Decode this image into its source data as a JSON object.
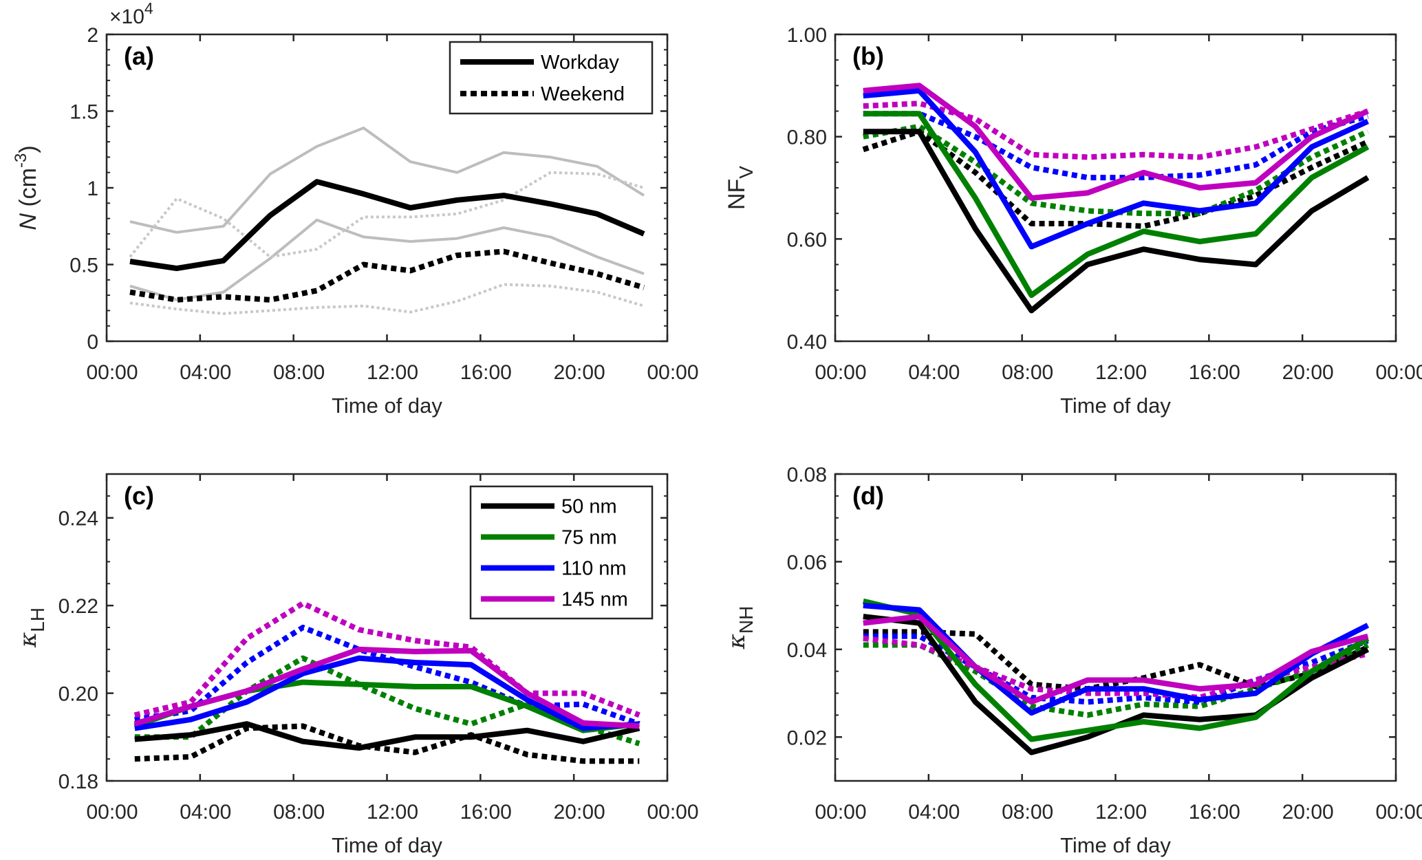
{
  "chart_data": [
    {
      "type": "line",
      "panel_label": "(a)",
      "ylabel": {
        "main": "N",
        "pre": " (cm",
        "sup": "-3",
        "post": ")"
      },
      "multiplier": {
        "base": "×10",
        "exp": "4"
      },
      "xlabel": "Time of day",
      "xlim": [
        0,
        24
      ],
      "xticks": [
        0,
        4,
        8,
        12,
        16,
        20,
        24
      ],
      "xtick_labels": [
        "00:00",
        "04:00",
        "08:00",
        "12:00",
        "16:00",
        "20:00",
        "00:00"
      ],
      "ylim": [
        0,
        20000
      ],
      "yticks": [
        0,
        5000,
        10000,
        15000,
        20000
      ],
      "ytick_labels": [
        "0",
        "0.5",
        "1",
        "1.5",
        "2"
      ],
      "minor_tick_step": 1000,
      "x": [
        1,
        3,
        5,
        7,
        9,
        11,
        13,
        15,
        17,
        19,
        21,
        23
      ],
      "legend": {
        "placement": "top-right",
        "entries": [
          {
            "label": "Workday",
            "color": "#000000",
            "style": "solid"
          },
          {
            "label": "Weekend",
            "color": "#000000",
            "style": "dotted"
          }
        ]
      },
      "series": [
        {
          "color": "#bdbdbd",
          "style": "solid",
          "role": "workday-upper",
          "values": [
            7800,
            7100,
            7500,
            10900,
            12700,
            13900,
            11700,
            11000,
            12300,
            12000,
            11400,
            9500
          ]
        },
        {
          "color": "#bdbdbd",
          "style": "solid",
          "role": "workday-lower",
          "values": [
            3600,
            2700,
            3200,
            5400,
            7900,
            6800,
            6500,
            6700,
            7400,
            6800,
            5500,
            4400
          ]
        },
        {
          "color": "#c8c8c8",
          "style": "dotted",
          "role": "weekend-upper",
          "values": [
            5500,
            9300,
            8000,
            5500,
            6000,
            8100,
            8100,
            8300,
            9200,
            11000,
            10900,
            10000
          ]
        },
        {
          "color": "#c8c8c8",
          "style": "dotted",
          "role": "weekend-lower",
          "values": [
            2500,
            2100,
            1800,
            2000,
            2200,
            2300,
            1900,
            2600,
            3700,
            3600,
            3200,
            2300
          ]
        },
        {
          "name": "Workday",
          "color": "#000000",
          "style": "solid",
          "values": [
            5200,
            4750,
            5250,
            8200,
            10400,
            9600,
            8700,
            9200,
            9500,
            8950,
            8300,
            7000
          ]
        },
        {
          "name": "Weekend",
          "color": "#000000",
          "style": "dotted",
          "values": [
            3200,
            2700,
            2900,
            2700,
            3300,
            5000,
            4600,
            5600,
            5850,
            5100,
            4400,
            3500
          ]
        }
      ]
    },
    {
      "type": "line",
      "panel_label": "(b)",
      "ylabel": {
        "main": "NF",
        "sub": "V"
      },
      "xlabel": "Time of day",
      "xlim": [
        0,
        24
      ],
      "xticks": [
        0,
        4,
        8,
        12,
        16,
        20,
        24
      ],
      "xtick_labels": [
        "00:00",
        "04:00",
        "08:00",
        "12:00",
        "16:00",
        "20:00",
        "00:00"
      ],
      "ylim": [
        0.4,
        1.0
      ],
      "yticks": [
        0.4,
        0.6,
        0.8,
        1.0
      ],
      "ytick_labels": [
        "0.40",
        "0.60",
        "0.80",
        "1.00"
      ],
      "minor_tick_step": 0.05,
      "x": [
        1.2,
        3.6,
        6.0,
        8.4,
        10.8,
        13.2,
        15.6,
        18.0,
        20.4,
        22.8
      ],
      "series": [
        {
          "name": "50 nm",
          "color": "#000000",
          "style": "dotted",
          "values": [
            0.775,
            0.81,
            0.73,
            0.63,
            0.63,
            0.625,
            0.65,
            0.685,
            0.74,
            0.79
          ]
        },
        {
          "name": "75 nm",
          "color": "#008000",
          "style": "dotted",
          "values": [
            0.8,
            0.82,
            0.75,
            0.67,
            0.655,
            0.65,
            0.65,
            0.695,
            0.76,
            0.81
          ]
        },
        {
          "name": "110 nm",
          "color": "#0000ff",
          "style": "dotted",
          "values": [
            0.845,
            0.845,
            0.8,
            0.74,
            0.72,
            0.72,
            0.725,
            0.745,
            0.81,
            0.84
          ]
        },
        {
          "name": "145 nm",
          "color": "#bf00bf",
          "style": "dotted",
          "values": [
            0.86,
            0.865,
            0.835,
            0.765,
            0.76,
            0.765,
            0.76,
            0.78,
            0.815,
            0.85
          ]
        },
        {
          "name": "50 nm",
          "color": "#000000",
          "style": "solid",
          "values": [
            0.81,
            0.81,
            0.62,
            0.46,
            0.55,
            0.58,
            0.56,
            0.55,
            0.655,
            0.72
          ]
        },
        {
          "name": "75 nm",
          "color": "#008000",
          "style": "solid",
          "values": [
            0.845,
            0.845,
            0.68,
            0.49,
            0.57,
            0.615,
            0.595,
            0.61,
            0.72,
            0.78
          ]
        },
        {
          "name": "110 nm",
          "color": "#0000ff",
          "style": "solid",
          "values": [
            0.88,
            0.89,
            0.77,
            0.585,
            0.63,
            0.67,
            0.655,
            0.67,
            0.78,
            0.83
          ]
        },
        {
          "name": "145 nm",
          "color": "#bf00bf",
          "style": "solid",
          "values": [
            0.89,
            0.9,
            0.82,
            0.68,
            0.69,
            0.73,
            0.7,
            0.71,
            0.8,
            0.85
          ]
        }
      ]
    },
    {
      "type": "line",
      "panel_label": "(c)",
      "ylabel": {
        "main": "κ",
        "sub": "LH"
      },
      "xlabel": "Time of day",
      "xlim": [
        0,
        24
      ],
      "xticks": [
        0,
        4,
        8,
        12,
        16,
        20,
        24
      ],
      "xtick_labels": [
        "00:00",
        "04:00",
        "08:00",
        "12:00",
        "16:00",
        "20:00",
        "00:00"
      ],
      "ylim": [
        0.18,
        0.25
      ],
      "yticks": [
        0.18,
        0.2,
        0.22,
        0.24
      ],
      "ytick_labels": [
        "0.18",
        "0.20",
        "0.22",
        "0.24"
      ],
      "minor_tick_step": 0.005,
      "x": [
        1.2,
        3.6,
        6.0,
        8.4,
        10.8,
        13.2,
        15.6,
        18.0,
        20.4,
        22.8
      ],
      "legend": {
        "placement": "top-right",
        "entries": [
          {
            "label": "50 nm",
            "color": "#000000",
            "style": "solid"
          },
          {
            "label": "75 nm",
            "color": "#008000",
            "style": "solid"
          },
          {
            "label": "110 nm",
            "color": "#0000ff",
            "style": "solid"
          },
          {
            "label": "145 nm",
            "color": "#bf00bf",
            "style": "solid"
          }
        ]
      },
      "series": [
        {
          "name": "50 nm",
          "color": "#000000",
          "style": "dotted",
          "values": [
            0.185,
            0.1855,
            0.192,
            0.1925,
            0.188,
            0.1865,
            0.1905,
            0.186,
            0.1845,
            0.1845
          ]
        },
        {
          "name": "75 nm",
          "color": "#008000",
          "style": "dotted",
          "values": [
            0.19,
            0.19,
            0.2005,
            0.208,
            0.202,
            0.1965,
            0.193,
            0.1975,
            0.1925,
            0.1885
          ]
        },
        {
          "name": "110 nm",
          "color": "#0000ff",
          "style": "dotted",
          "values": [
            0.194,
            0.196,
            0.207,
            0.215,
            0.21,
            0.206,
            0.2025,
            0.197,
            0.1975,
            0.193
          ]
        },
        {
          "name": "145 nm",
          "color": "#bf00bf",
          "style": "dotted",
          "values": [
            0.195,
            0.198,
            0.2125,
            0.2205,
            0.2145,
            0.212,
            0.2105,
            0.2,
            0.2,
            0.195
          ]
        },
        {
          "name": "50 nm",
          "color": "#000000",
          "style": "solid",
          "values": [
            0.1895,
            0.1905,
            0.193,
            0.189,
            0.1875,
            0.19,
            0.19,
            0.1915,
            0.189,
            0.192
          ]
        },
        {
          "name": "75 nm",
          "color": "#008000",
          "style": "solid",
          "values": [
            0.1925,
            0.197,
            0.2005,
            0.2025,
            0.202,
            0.2015,
            0.2015,
            0.197,
            0.1915,
            0.193
          ]
        },
        {
          "name": "110 nm",
          "color": "#0000ff",
          "style": "solid",
          "values": [
            0.192,
            0.194,
            0.198,
            0.2045,
            0.208,
            0.207,
            0.2065,
            0.1985,
            0.192,
            0.193
          ]
        },
        {
          "name": "145 nm",
          "color": "#bf00bf",
          "style": "solid",
          "values": [
            0.193,
            0.197,
            0.2005,
            0.2055,
            0.21,
            0.2095,
            0.2097,
            0.2,
            0.1932,
            0.1925
          ]
        }
      ]
    },
    {
      "type": "line",
      "panel_label": "(d)",
      "ylabel": {
        "main": "κ",
        "sub": "NH"
      },
      "xlabel": "Time of day",
      "xlim": [
        0,
        24
      ],
      "xticks": [
        0,
        4,
        8,
        12,
        16,
        20,
        24
      ],
      "xtick_labels": [
        "00:00",
        "04:00",
        "08:00",
        "12:00",
        "16:00",
        "20:00",
        "00:00"
      ],
      "ylim": [
        0.01,
        0.08
      ],
      "yticks": [
        0.02,
        0.04,
        0.06,
        0.08
      ],
      "ytick_labels": [
        "0.02",
        "0.04",
        "0.06",
        "0.08"
      ],
      "minor_tick_step": 0.005,
      "x": [
        1.2,
        3.6,
        6.0,
        8.4,
        10.8,
        13.2,
        15.6,
        18.0,
        20.4,
        22.8
      ],
      "series": [
        {
          "name": "50 nm",
          "color": "#000000",
          "style": "dotted",
          "values": [
            0.044,
            0.044,
            0.0435,
            0.032,
            0.031,
            0.0335,
            0.0365,
            0.0315,
            0.0345,
            0.0405
          ]
        },
        {
          "name": "75 nm",
          "color": "#008000",
          "style": "dotted",
          "values": [
            0.041,
            0.041,
            0.035,
            0.027,
            0.025,
            0.0275,
            0.027,
            0.031,
            0.035,
            0.041
          ]
        },
        {
          "name": "110 nm",
          "color": "#0000ff",
          "style": "dotted",
          "values": [
            0.043,
            0.043,
            0.036,
            0.029,
            0.028,
            0.029,
            0.028,
            0.033,
            0.037,
            0.042
          ]
        },
        {
          "name": "145 nm",
          "color": "#bf00bf",
          "style": "dotted",
          "values": [
            0.0425,
            0.041,
            0.036,
            0.031,
            0.03,
            0.03,
            0.029,
            0.033,
            0.036,
            0.039
          ]
        },
        {
          "name": "50 nm",
          "color": "#000000",
          "style": "solid",
          "values": [
            0.0475,
            0.046,
            0.028,
            0.0165,
            0.02,
            0.025,
            0.024,
            0.025,
            0.0335,
            0.04
          ]
        },
        {
          "name": "75 nm",
          "color": "#008000",
          "style": "solid",
          "values": [
            0.051,
            0.048,
            0.032,
            0.0195,
            0.0215,
            0.0235,
            0.022,
            0.0245,
            0.035,
            0.0425
          ]
        },
        {
          "name": "110 nm",
          "color": "#0000ff",
          "style": "solid",
          "values": [
            0.05,
            0.049,
            0.036,
            0.0255,
            0.031,
            0.031,
            0.0285,
            0.03,
            0.039,
            0.0455
          ]
        },
        {
          "name": "145 nm",
          "color": "#bf00bf",
          "style": "solid",
          "values": [
            0.046,
            0.0475,
            0.036,
            0.028,
            0.033,
            0.033,
            0.031,
            0.032,
            0.0395,
            0.043
          ]
        }
      ]
    }
  ]
}
